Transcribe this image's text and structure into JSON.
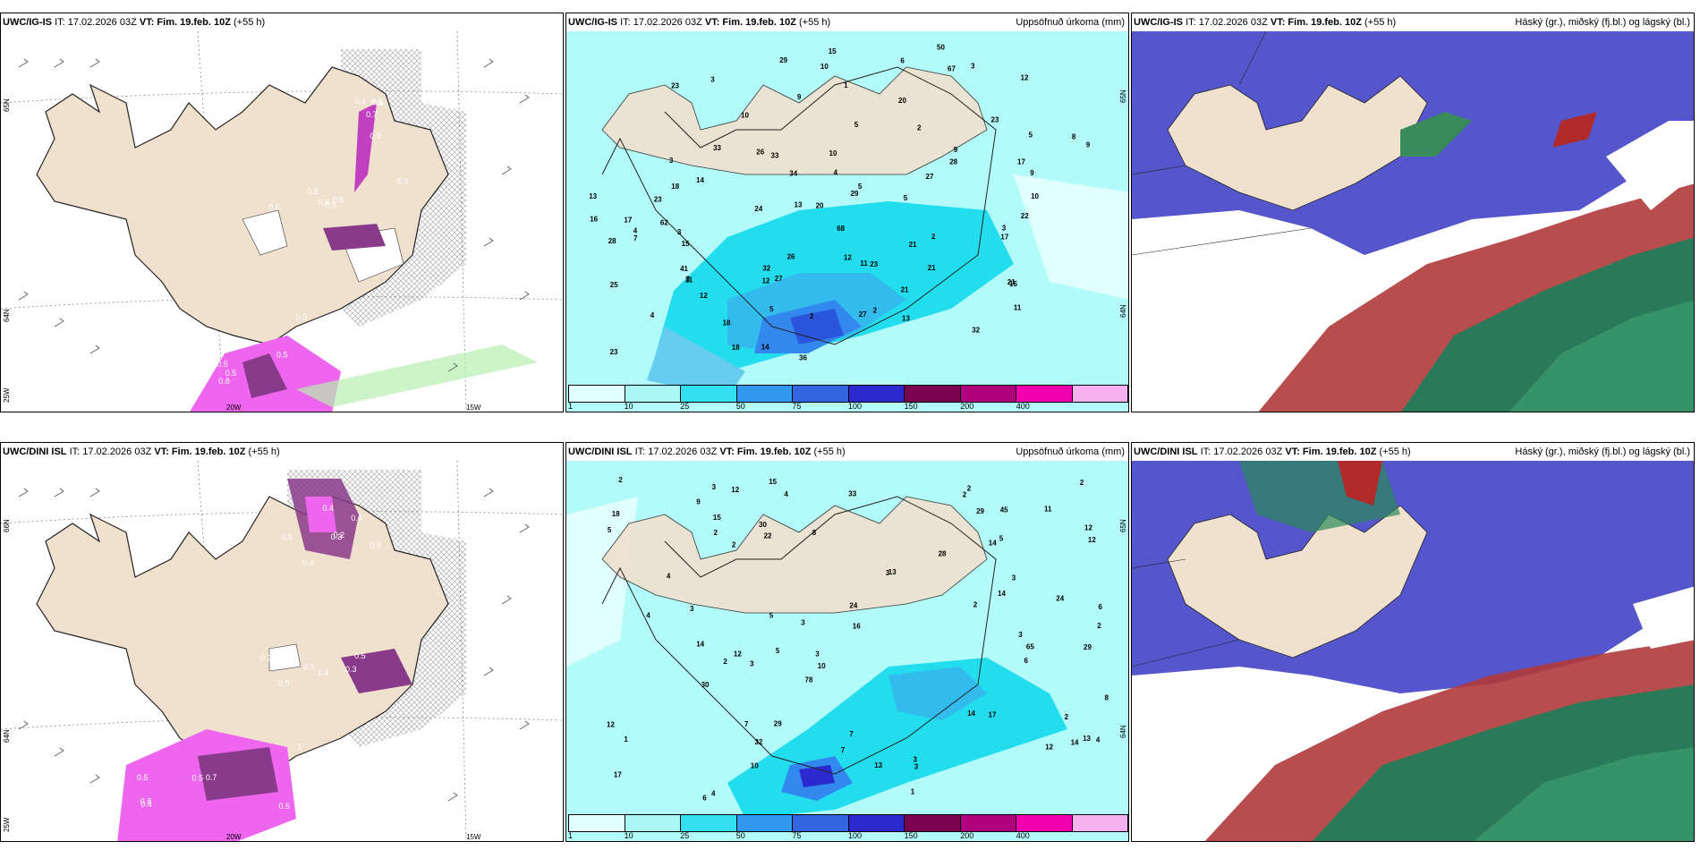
{
  "panels": [
    {
      "model": "UWC/IG-IS",
      "it": "IT: 17.02.2026 03Z",
      "vt_label": "VT:",
      "vt": "Fim. 19.feb. 10Z",
      "lead": "(+55 h)",
      "right": "",
      "labels": {
        "lat1": "65N",
        "lat2": "64N",
        "lon_left": "25W",
        "lon1": "20W",
        "lon2": "15W"
      },
      "values": [
        "0.5",
        "0.5",
        "0.5",
        "0.9",
        "0.5",
        "0.8",
        "0.5",
        "0.6",
        "0.5",
        "0.7",
        "0.5",
        "0.5",
        "0.6",
        "0.3",
        "0.5",
        "0.3",
        "0.8"
      ]
    },
    {
      "model": "UWC/IG-IS",
      "it": "IT: 17.02.2026 03Z",
      "vt_label": "VT:",
      "vt": "Fim. 19.feb. 10Z",
      "lead": "(+55 h)",
      "right": "Uppsöfnuð úrkoma (mm)",
      "labels": {
        "lat1": "65N",
        "lat2": "64N"
      },
      "values": [
        "4",
        "3",
        "3",
        "23",
        "11",
        "14",
        "15",
        "3",
        "5",
        "9",
        "17",
        "15",
        "21",
        "29",
        "36",
        "29",
        "11",
        "13",
        "11",
        "14",
        "13",
        "10",
        "9",
        "5",
        "4",
        "5",
        "4",
        "6",
        "5",
        "2",
        "3",
        "12",
        "2",
        "12",
        "15",
        "7",
        "8",
        "5",
        "2",
        "3",
        "9",
        "1",
        "2",
        "3",
        "16",
        "18",
        "21",
        "27",
        "32",
        "21",
        "33",
        "18",
        "10",
        "9",
        "24",
        "23",
        "26",
        "21",
        "23",
        "23",
        "23",
        "50",
        "20",
        "13",
        "26",
        "25",
        "41",
        "27",
        "22",
        "32",
        "17",
        "18",
        "34",
        "62",
        "67",
        "68",
        "28",
        "20",
        "12",
        "12",
        "10",
        "10",
        "17",
        "33",
        "28",
        "27"
      ]
    },
    {
      "model": "UWC/IG-IS",
      "it": "IT: 17.02.2026 03Z",
      "vt_label": "VT:",
      "vt": "Fim. 19.feb. 10Z",
      "lead": "(+55 h)",
      "right": "Háský (gr.), miðský (fj.bl.) og lágský (bl.)"
    },
    {
      "model": "UWC/DINI ISL",
      "it": "IT: 17.02.2026 03Z",
      "vt_label": "VT:",
      "vt": "Fim. 19.feb. 10Z",
      "lead": "(+55 h)",
      "right": "",
      "labels": {
        "lat1": "66N",
        "lat2": "64N",
        "lon_left": "25W",
        "lon1": "20W",
        "lon2": "15W"
      },
      "values": [
        "0.2",
        "0.2",
        "1",
        "0.3",
        "0.5",
        "0.7",
        "0.4",
        "0.3",
        "0.5",
        "0.4",
        "0.5",
        "0.5",
        "0.5",
        "1.4",
        "0.5",
        "0.9",
        "0.5",
        "0.4",
        "0.4",
        "0.5",
        "0.8"
      ]
    },
    {
      "model": "UWC/DINI ISL",
      "it": "IT: 17.02.2026 03Z",
      "vt_label": "VT:",
      "vt": "Fim. 19.feb. 10Z",
      "lead": "(+55 h)",
      "right": "Uppsöfnuð úrkoma (mm)",
      "labels": {
        "lat1": "65N",
        "lat2": "64N"
      },
      "values": [
        "6",
        "2",
        "4",
        "6",
        "6",
        "7",
        "13",
        "12",
        "17",
        "24",
        "14",
        "12",
        "22",
        "29",
        "33",
        "30",
        "18",
        "12",
        "11",
        "3",
        "3",
        "3",
        "3",
        "8",
        "3",
        "29",
        "29",
        "17",
        "12",
        "4",
        "3",
        "4",
        "2",
        "10",
        "15",
        "14",
        "13",
        "3",
        "2",
        "2",
        "2",
        "5",
        "2",
        "12",
        "7",
        "7",
        "5",
        "1",
        "2",
        "2",
        "2",
        "1",
        "3",
        "4",
        "12",
        "10",
        "15",
        "14",
        "14",
        "32",
        "30",
        "28",
        "14",
        "16",
        "3",
        "5",
        "45",
        "78",
        "65",
        "24",
        "13",
        "9",
        "8",
        "5",
        "2",
        "3",
        "4"
      ]
    },
    {
      "model": "UWC/DINI ISL",
      "it": "IT: 17.02.2026 03Z",
      "vt_label": "VT:",
      "vt": "Fim. 19.feb. 10Z",
      "lead": "(+55 h)",
      "right": "Háský (gr.), miðský (fj.bl.) og lágský (bl.)"
    }
  ],
  "legend": {
    "colors": [
      "#e0ffff",
      "#aaf7f7",
      "#33e0f0",
      "#3399f0",
      "#3366e0",
      "#2a2ad0",
      "#7a0050",
      "#b00080",
      "#f000b0",
      "#f5b0f0"
    ],
    "labels": [
      "1",
      "10",
      "25",
      "50",
      "75",
      "100",
      "150",
      "200",
      "400"
    ]
  },
  "colors": {
    "land": "#f0e1cf",
    "snow_pink": "#ee66ee",
    "snow_dark": "#8a3a8a",
    "precip_light": "#b3fafa",
    "precip_mid": "#22ddee",
    "precip_blue": "#3388ee",
    "high_cloud": "#2a8a5a",
    "mid_cloud": "#b02a2a",
    "low_cloud": "#5555cc"
  }
}
